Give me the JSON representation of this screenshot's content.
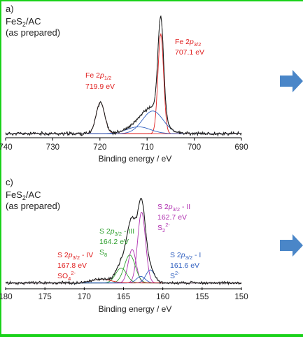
{
  "chart_data": [
    {
      "type": "line",
      "panel_label": "a)",
      "sample_lines": [
        "FeS",
        "2",
        "/AC",
        "(as prepared)"
      ],
      "xlabel": "Binding energy / eV",
      "xlim": [
        740,
        690
      ],
      "ylim": [
        0,
        1.05
      ],
      "x_ticks": [
        740,
        730,
        720,
        710,
        700,
        690
      ],
      "grid": false,
      "colors": {
        "raw": "#111111",
        "envelope": "#888888",
        "fe_2p32": "#e02020",
        "fe_2p12": "#e02020",
        "satellite": "#3060c0",
        "satellite2": "#3060c0",
        "text": "#e02020"
      },
      "peaks": [
        {
          "id": "fe_2p32",
          "center": 707.1,
          "height": 0.88,
          "width": 0.6
        },
        {
          "id": "fe_2p12",
          "center": 719.9,
          "height": 0.28,
          "width": 0.9
        },
        {
          "id": "satellite",
          "center": 708.8,
          "height": 0.2,
          "width": 2.2
        },
        {
          "id": "satellite2",
          "center": 711.8,
          "height": 0.06,
          "width": 2.5
        }
      ],
      "baseline": 0.03,
      "noise_amp": 0.013,
      "annotations": [
        {
          "text_main": "Fe 2",
          "text_italic": "p",
          "text_sub": "3/2",
          "value": "707.1 eV",
          "color": "#e02020"
        },
        {
          "text_main": "Fe 2",
          "text_italic": "p",
          "text_sub": "1/2",
          "value": "719.9 eV",
          "color": "#e02020"
        }
      ]
    },
    {
      "type": "line",
      "panel_label": "c)",
      "sample_lines": [
        "FeS",
        "2",
        "/AC",
        "(as prepared)"
      ],
      "xlabel": "Binding energy / eV",
      "xlim": [
        180,
        150
      ],
      "ylim": [
        0,
        1.05
      ],
      "x_ticks": [
        180,
        175,
        170,
        165,
        160,
        155,
        150
      ],
      "grid": false,
      "colors": {
        "raw": "#111111",
        "envelope": "#888888",
        "s_ii": "#b030b0",
        "s_iii": "#30a030",
        "s_iv": "#e02020",
        "s_i": "#3060c0",
        "s_ii_b": "#b030b0",
        "s_iii_b": "#30a030",
        "s_i_b": "#3060c0"
      },
      "peaks": [
        {
          "id": "s_ii",
          "center": 162.7,
          "height": 0.76,
          "width": 0.5
        },
        {
          "id": "s_ii_b",
          "center": 163.9,
          "height": 0.36,
          "width": 0.5
        },
        {
          "id": "s_iii",
          "center": 164.2,
          "height": 0.3,
          "width": 0.7
        },
        {
          "id": "s_iii_b",
          "center": 165.3,
          "height": 0.16,
          "width": 0.7
        },
        {
          "id": "s_i",
          "center": 161.6,
          "height": 0.14,
          "width": 0.55
        },
        {
          "id": "s_i_b",
          "center": 162.8,
          "height": 0.07,
          "width": 0.55
        },
        {
          "id": "s_iv",
          "center": 167.8,
          "height": 0.04,
          "width": 1.2
        }
      ],
      "baseline": 0.04,
      "noise_amp": 0.013,
      "annotations": [
        {
          "label": "S 2",
          "italic": "p",
          "sub": "3/2",
          "suffix": " - II",
          "value": "162.7 eV",
          "species": "S",
          "species_sup": "2",
          "species_sub": "2-",
          "color": "#b030b0"
        },
        {
          "label": "S 2",
          "italic": "p",
          "sub": "3/2",
          "suffix": " - III",
          "value": "164.2 eV",
          "species": "S",
          "species_sub": "8",
          "color": "#30a030"
        },
        {
          "label": "S 2",
          "italic": "p",
          "sub": "3/2",
          "suffix": " - IV",
          "value": "167.8 eV",
          "species": "SO",
          "species_sub": "4",
          "species_sup": "2-",
          "color": "#e02020"
        },
        {
          "label": "S 2",
          "italic": "p",
          "sub": "3/2",
          "suffix": " - I",
          "value": "161.6 eV",
          "species": "S",
          "species_sup": "2-",
          "color": "#3060c0"
        }
      ]
    }
  ],
  "arrows": {
    "color": "#4a86c8",
    "icon": "right-arrow-icon"
  }
}
